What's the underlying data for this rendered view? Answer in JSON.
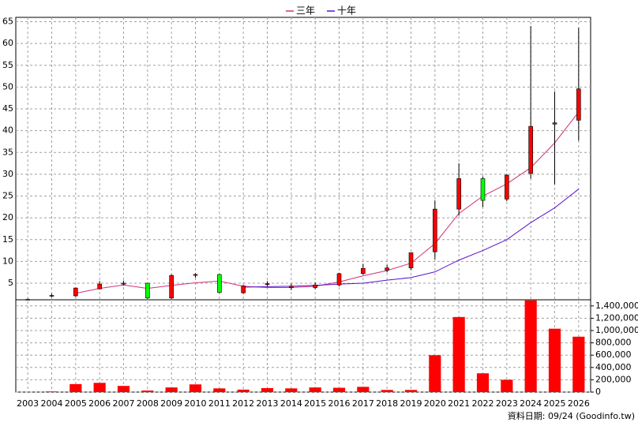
{
  "chart_data": {
    "type": "candlestick",
    "legend": [
      "三年",
      "十年"
    ],
    "source": "資料日期: 09/24 (Goodinfo.tw)",
    "categories": [
      "2003",
      "2004",
      "2005",
      "2006",
      "2007",
      "2008",
      "2009",
      "2010",
      "2011",
      "2012",
      "2013",
      "2014",
      "2015",
      "2016",
      "2017",
      "2018",
      "2019",
      "2020",
      "2021",
      "2022",
      "2023",
      "2024",
      "2025",
      "2026"
    ],
    "open": [
      1.3,
      2.1,
      2.1,
      3.7,
      4.8,
      5.0,
      1.6,
      6.8,
      7.0,
      2.8,
      4.7,
      4.0,
      4.0,
      4.6,
      7.2,
      8.0,
      8.5,
      12.2,
      22,
      29,
      24.3,
      30.2,
      41.5,
      42.4
    ],
    "close": [
      1.3,
      2.2,
      3.9,
      4.8,
      5.0,
      1.6,
      6.8,
      7.0,
      2.9,
      4.4,
      4.9,
      4.3,
      4.6,
      7.2,
      8.4,
      8.5,
      12,
      22,
      29,
      24,
      29.8,
      41,
      41.8,
      49.6
    ],
    "high": [
      1.5,
      2.6,
      4.0,
      5.5,
      5.6,
      5.1,
      7.0,
      7.3,
      7.1,
      4.6,
      5.5,
      4.9,
      5.2,
      7.4,
      9.4,
      9.2,
      12,
      24,
      32.5,
      29.5,
      30,
      64,
      49,
      63.6
    ],
    "low": [
      1.2,
      1.8,
      1.9,
      3.6,
      4.5,
      1.4,
      1.4,
      6.3,
      2.7,
      2.6,
      4.2,
      3.4,
      3.6,
      4.3,
      7.0,
      7.5,
      8.0,
      10.5,
      20.5,
      22.5,
      23.8,
      29,
      27.7,
      37.7
    ],
    "up_color": "#ff0000",
    "down_color": "#00ff00",
    "series": [
      {
        "name": "三年",
        "color": "#d0307a",
        "values": [
          null,
          null,
          2.7,
          3.8,
          4.6,
          3.8,
          4.5,
          5.1,
          5.5,
          4.3,
          4.0,
          4.0,
          4.3,
          5.3,
          6.7,
          7.9,
          9.6,
          14.1,
          21,
          25,
          27.8,
          31.5,
          37.2,
          44.3
        ]
      },
      {
        "name": "十年",
        "color": "#5a10d0",
        "values": [
          null,
          null,
          null,
          null,
          null,
          null,
          null,
          null,
          null,
          4.1,
          4.2,
          4.3,
          4.5,
          4.8,
          5.0,
          5.7,
          6.3,
          7.6,
          10.3,
          12.5,
          15.0,
          18.9,
          22.3,
          26.6
        ]
      }
    ],
    "ylim": [
      1.2,
      66
    ],
    "yticks": [
      5,
      10,
      15,
      20,
      25,
      30,
      35,
      40,
      45,
      50,
      55,
      60,
      65
    ],
    "volume": [
      0,
      10000,
      130000,
      150000,
      100000,
      25000,
      75000,
      125000,
      60000,
      40000,
      65000,
      60000,
      75000,
      70000,
      85000,
      35000,
      35000,
      600000,
      1220000,
      305000,
      200000,
      1490000,
      1030000,
      900000
    ],
    "volume_color": "#ff0000",
    "y2lim": [
      0,
      1500000
    ],
    "y2ticks": [
      0,
      {
        "value": 200000,
        "label": "200,000"
      },
      {
        "value": 400000,
        "label": "400,000"
      },
      {
        "value": 600000,
        "label": "600,000"
      },
      {
        "value": 800000,
        "label": "800,000"
      },
      {
        "value": 1000000,
        "label": "1,000,000"
      },
      {
        "value": 1200000,
        "label": "1,200,000"
      },
      {
        "value": 1400000,
        "label": "1,400,000"
      }
    ],
    "grid": true
  }
}
